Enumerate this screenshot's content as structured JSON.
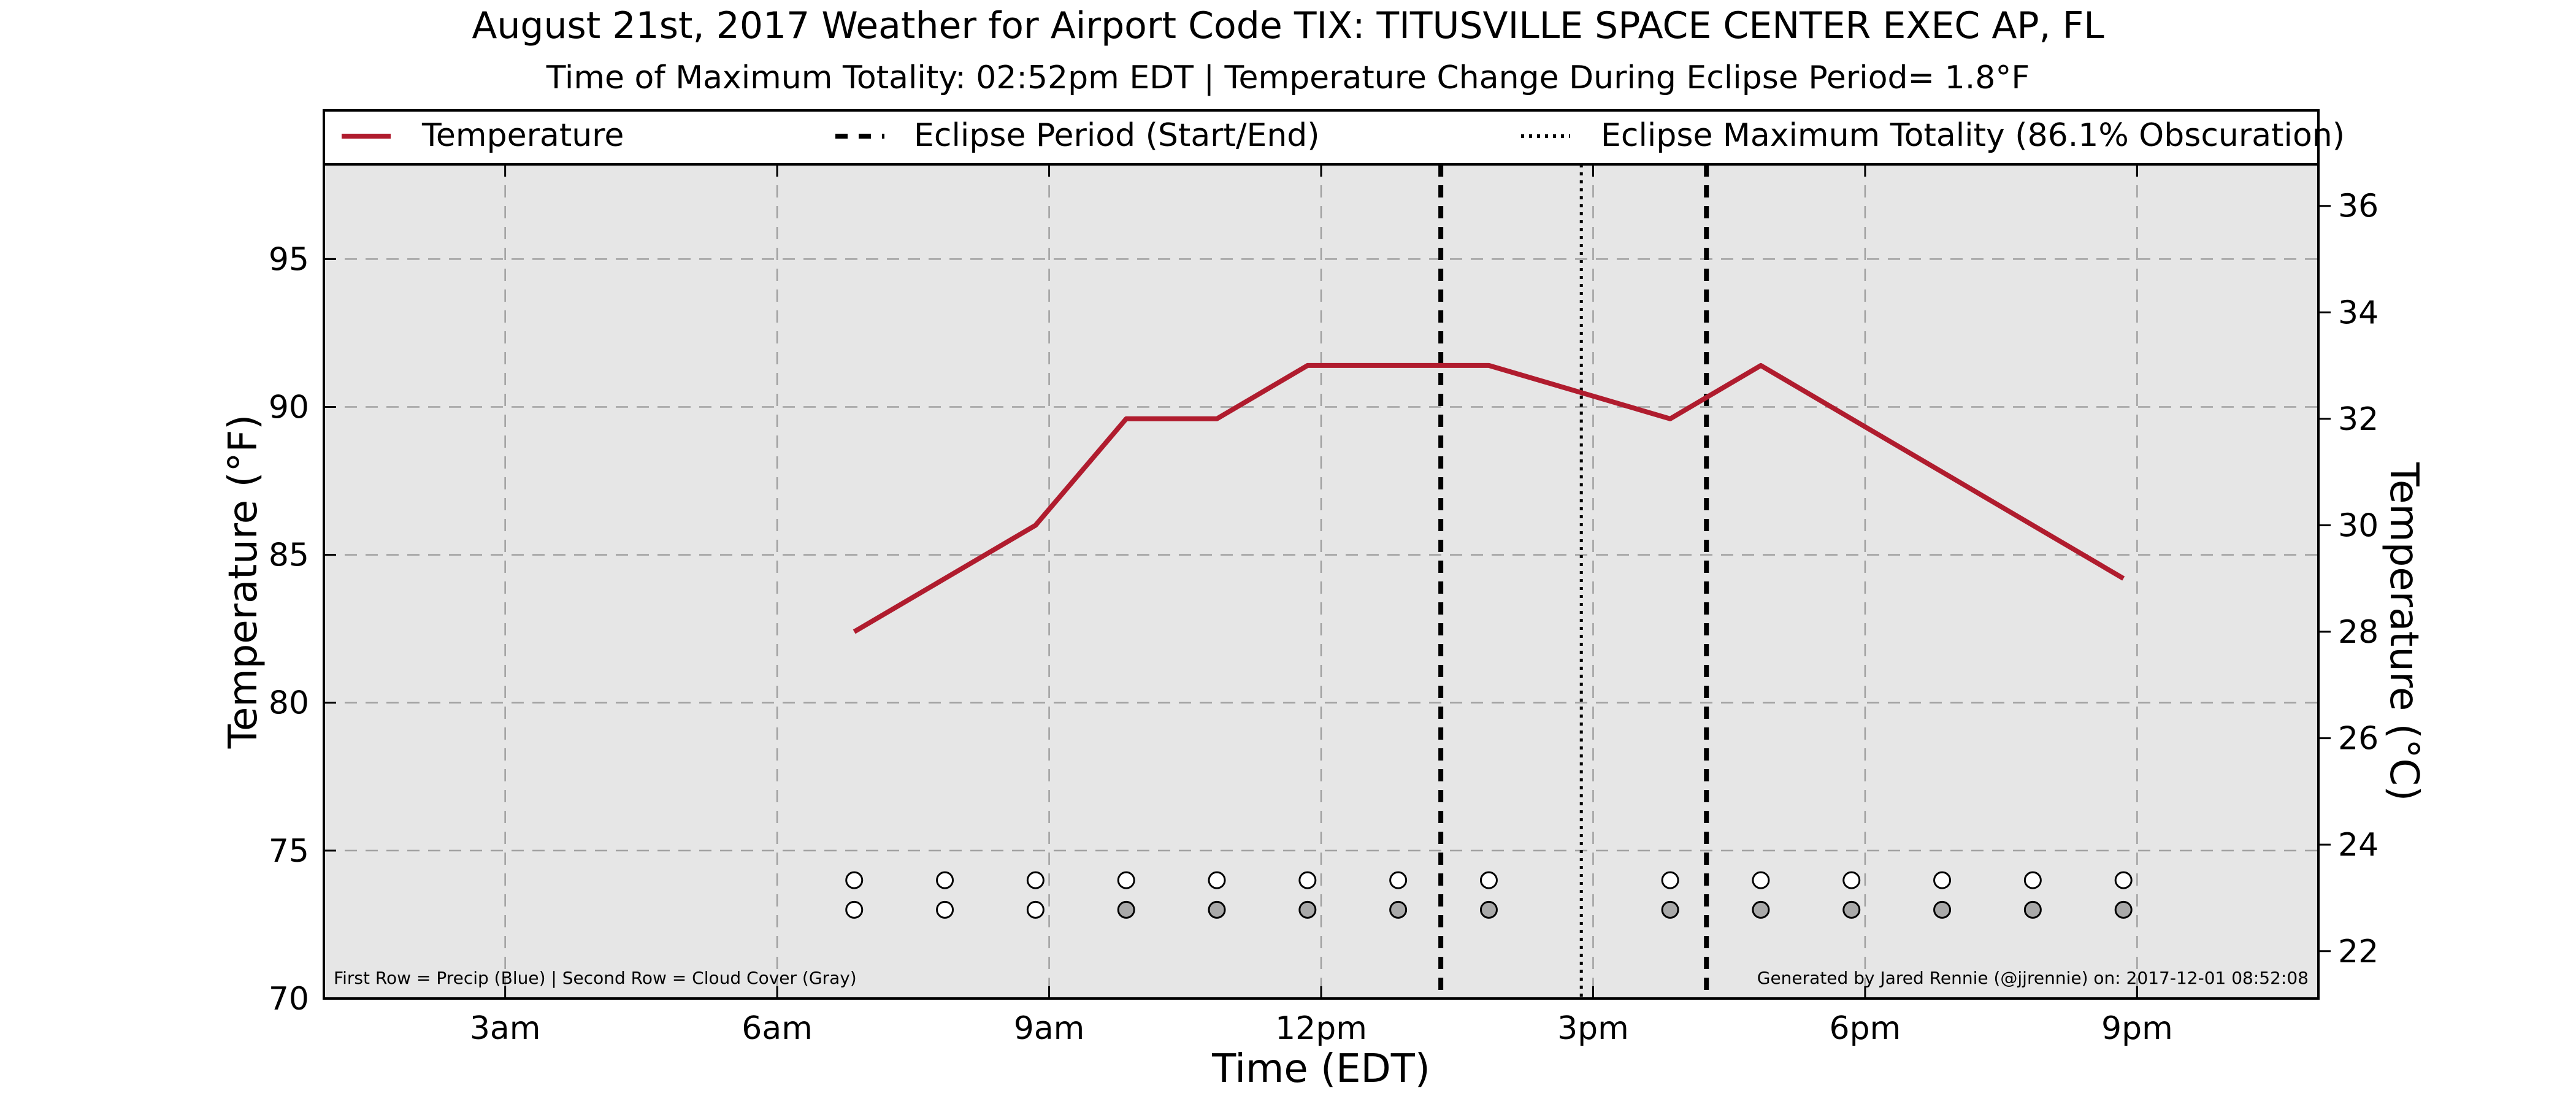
{
  "chart_data": {
    "type": "line",
    "title": "August 21st, 2017 Weather for Airport Code TIX: TITUSVILLE SPACE CENTER EXEC AP, FL",
    "subtitle": "Time of Maximum Totality: 02:52pm EDT | Temperature Change During Eclipse Period= 1.8°F",
    "xlabel": "Time (EDT)",
    "ylabel_left": "Temperature (°F)",
    "ylabel_right": "Temperature (°C)",
    "xlim": [
      1,
      23
    ],
    "ylim_left": [
      70,
      98.2
    ],
    "ylim_right": [
      21.11,
      36.78
    ],
    "x_ticks": [
      {
        "hour": 3,
        "label": "3am"
      },
      {
        "hour": 6,
        "label": "6am"
      },
      {
        "hour": 9,
        "label": "9am"
      },
      {
        "hour": 12,
        "label": "12pm"
      },
      {
        "hour": 15,
        "label": "3pm"
      },
      {
        "hour": 18,
        "label": "6pm"
      },
      {
        "hour": 21,
        "label": "9pm"
      }
    ],
    "y_ticks_left": [
      70,
      75,
      80,
      85,
      90,
      95
    ],
    "y_ticks_right": [
      22,
      24,
      26,
      28,
      30,
      32,
      34,
      36
    ],
    "grid": true,
    "legend_placement": "top",
    "series": [
      {
        "name": "Temperature",
        "color": "#b01c2e",
        "x": [
          6.85,
          7.85,
          8.85,
          9.85,
          10.85,
          11.85,
          12.85,
          13.85,
          14.85,
          15.85,
          16.85,
          17.85,
          18.85,
          19.85,
          20.85
        ],
        "y": [
          82.4,
          84.2,
          86.0,
          89.6,
          89.6,
          91.4,
          91.4,
          91.4,
          90.5,
          89.6,
          91.4,
          89.6,
          87.8,
          86.0,
          84.2
        ]
      }
    ],
    "eclipse": {
      "legend_period": "Eclipse Period (Start/End)",
      "legend_max": "Eclipse Maximum Totality (86.1% Obscuration)",
      "start_hour": 13.32,
      "end_hour": 16.25,
      "max_hour": 14.87
    },
    "precip_row": {
      "y": 74,
      "x": [
        6.85,
        7.85,
        8.85,
        9.85,
        10.85,
        11.85,
        12.85,
        13.85,
        15.85,
        16.85,
        17.85,
        18.85,
        19.85,
        20.85
      ],
      "color": "#ffffff"
    },
    "cloud_row": {
      "y": 73,
      "x": [
        6.85,
        7.85,
        8.85,
        9.85,
        10.85,
        11.85,
        12.85,
        13.85,
        15.85,
        16.85,
        17.85,
        18.85,
        19.85,
        20.85
      ],
      "colors": [
        "#ffffff",
        "#ffffff",
        "#ffffff",
        "#a9a9a9",
        "#a9a9a9",
        "#a9a9a9",
        "#a9a9a9",
        "#a9a9a9",
        "#a9a9a9",
        "#a9a9a9",
        "#a9a9a9",
        "#a9a9a9",
        "#a9a9a9",
        "#a9a9a9"
      ]
    },
    "note_left": "First Row = Precip (Blue) | Second Row = Cloud Cover (Gray)",
    "note_right": "Generated by Jared Rennie (@jjrennie) on: 2017-12-01 08:52:08",
    "plot_background": "#e6e6e6"
  }
}
